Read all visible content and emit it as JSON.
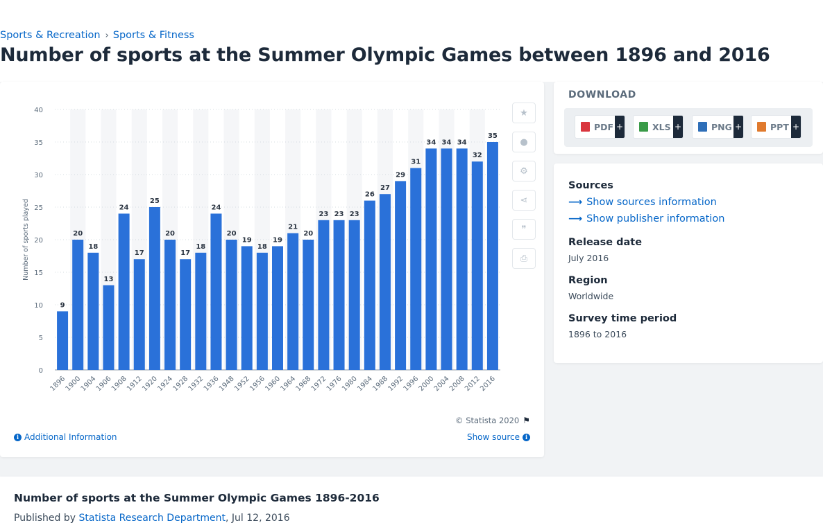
{
  "breadcrumb": {
    "items": [
      "Sports & Recreation",
      "Sports & Fitness"
    ],
    "separator": "›"
  },
  "page_title": "Number of sports at the Summer Olympic Games between 1896 and 2016",
  "chart_data": {
    "type": "bar",
    "categories": [
      "1896",
      "1900",
      "1904",
      "1906",
      "1908",
      "1912",
      "1920",
      "1924",
      "1928",
      "1932",
      "1936",
      "1948",
      "1952",
      "1956",
      "1960",
      "1964",
      "1968",
      "1972",
      "1976",
      "1980",
      "1984",
      "1988",
      "1992",
      "1996",
      "2000",
      "2004",
      "2008",
      "2012",
      "2016"
    ],
    "values": [
      9,
      20,
      18,
      13,
      24,
      17,
      25,
      20,
      17,
      18,
      24,
      20,
      19,
      18,
      19,
      21,
      20,
      23,
      23,
      23,
      26,
      27,
      29,
      31,
      34,
      34,
      34,
      32,
      35
    ],
    "ylabel": "Number of sports played",
    "ylim": [
      0,
      40
    ],
    "yticks": [
      0,
      5,
      10,
      15,
      20,
      25,
      30,
      35,
      40
    ],
    "bar_color": "#2a71d9",
    "grid": true,
    "data_labels": true
  },
  "chart_footer": {
    "credit": "© Statista 2020",
    "additional_info": "Additional Information",
    "show_source": "Show source"
  },
  "tools": [
    {
      "icon": "star-icon",
      "glyph": "★"
    },
    {
      "icon": "bell-icon",
      "glyph": "🔔"
    },
    {
      "icon": "gear-icon",
      "glyph": "⚙"
    },
    {
      "icon": "share-icon",
      "glyph": "⋖"
    },
    {
      "icon": "quote-icon",
      "glyph": "❞"
    },
    {
      "icon": "print-icon",
      "glyph": "⎙"
    }
  ],
  "download": {
    "title": "DOWNLOAD",
    "formats": [
      {
        "label": "PDF",
        "icon": "pdf-file-icon",
        "color": "#d9363e"
      },
      {
        "label": "XLS",
        "icon": "xls-file-icon",
        "color": "#3a9b48"
      },
      {
        "label": "PNG",
        "icon": "png-file-icon",
        "color": "#2f6fb8"
      },
      {
        "label": "PPT",
        "icon": "ppt-file-icon",
        "color": "#e07a2e"
      }
    ],
    "plus": "+"
  },
  "meta": {
    "sources_heading": "Sources",
    "show_sources": "Show sources information",
    "show_publisher": "Show publisher information",
    "release_heading": "Release date",
    "release_value": "July 2016",
    "region_heading": "Region",
    "region_value": "Worldwide",
    "survey_heading": "Survey time period",
    "survey_value": "1896 to 2016"
  },
  "description": {
    "title": "Number of sports at the Summer Olympic Games 1896-2016",
    "published_prefix": "Published by",
    "publisher": "Statista Research Department",
    "date": ", Jul 12, 2016"
  }
}
